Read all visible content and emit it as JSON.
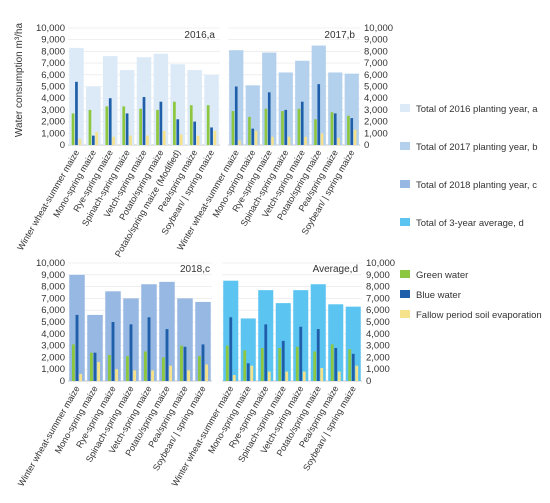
{
  "figure": {
    "ylabel": "Water consumption  m³/ha"
  },
  "y_ticks": [
    "0",
    "1,000",
    "2,000",
    "3,000",
    "4,000",
    "5,000",
    "6,000",
    "7,000",
    "8,000",
    "9,000",
    "10,000"
  ],
  "colors": {
    "total_2016": "#dbeaf6",
    "total_2017": "#b3d0ec",
    "total_2018": "#96b8e2",
    "total_avg": "#5bc4f1",
    "green_water": "#8dc63f",
    "blue_water": "#1f5fa9",
    "fallow_evap": "#f6e28b"
  },
  "legend_top": [
    {
      "key": "total_2016",
      "label": "Total of 2016 planting year, a"
    },
    {
      "key": "total_2017",
      "label": "Total of 2017 planting year, b"
    },
    {
      "key": "total_2018",
      "label": "Total of 2018 planting year, c"
    },
    {
      "key": "total_avg",
      "label": "Total of 3-year average, d"
    }
  ],
  "legend_bottom": [
    {
      "key": "green_water",
      "label": "Green water"
    },
    {
      "key": "blue_water",
      "label": "Blue water"
    },
    {
      "key": "fallow_evap",
      "label": "Fallow period soil evaporation"
    }
  ],
  "chart_data": [
    {
      "type": "bar",
      "title": "2016,a",
      "ylim": [
        0,
        10000
      ],
      "total_key": "total_2016",
      "categories": [
        "Winter wheat-summer maize",
        "Mono-spring maize",
        "Rye-spring maize",
        "Spinach-spring maize",
        "Vetch-spring maize",
        "Potato/spring maize",
        "Potato/spring maize (Modified)",
        "Pea/spring maize",
        "Soybean/ | spring maize"
      ],
      "series": [
        {
          "name": "Total of 2016 planting year, a",
          "values": [
            8300,
            5000,
            7600,
            6400,
            7500,
            7800,
            6900,
            6400,
            6000
          ]
        },
        {
          "name": "Green water",
          "values": [
            2700,
            3000,
            3300,
            3300,
            3100,
            3000,
            3700,
            3400,
            3400
          ]
        },
        {
          "name": "Blue water",
          "values": [
            5400,
            800,
            4000,
            2700,
            4100,
            3700,
            2200,
            2000,
            1500
          ]
        },
        {
          "name": "Fallow period soil evaporation",
          "values": [
            500,
            1100,
            700,
            800,
            800,
            1200,
            900,
            800,
            1200
          ]
        }
      ]
    },
    {
      "type": "bar",
      "title": "2017,b",
      "ylim": [
        0,
        10000
      ],
      "total_key": "total_2017",
      "categories": [
        "Winter wheat-summer maize",
        "Mono-spring maize",
        "Rye-spring maize",
        "Spinach-spring maize",
        "Vetch-spring maize",
        "Potato/spring maize",
        "Pea/spring maize",
        "Soybean/ | spring maize"
      ],
      "series": [
        {
          "name": "Total of 2017 planting year, b",
          "values": [
            8100,
            5100,
            7900,
            6200,
            7200,
            8500,
            6200,
            6100
          ]
        },
        {
          "name": "Green water",
          "values": [
            2900,
            2400,
            3100,
            2900,
            3100,
            2200,
            2800,
            2500
          ]
        },
        {
          "name": "Blue water",
          "values": [
            5000,
            1400,
            4500,
            3000,
            3700,
            5200,
            2700,
            2300
          ]
        },
        {
          "name": "Fallow period soil evaporation",
          "values": [
            400,
            1200,
            700,
            700,
            700,
            1000,
            600,
            1300
          ]
        }
      ]
    },
    {
      "type": "bar",
      "title": "2018,c",
      "ylim": [
        0,
        10000
      ],
      "total_key": "total_2018",
      "categories": [
        "Winter wheat-summer maize",
        "Mono-spring maize",
        "Rye-spring maize",
        "Spinach-spring maize",
        "Vetch-spring maize",
        "Potato/spring maize",
        "Pea/spring maize",
        "Soybean/ | spring maize"
      ],
      "series": [
        {
          "name": "Total of 2018 planting year, c",
          "values": [
            9000,
            5600,
            7600,
            7000,
            8200,
            8400,
            7000,
            6700
          ]
        },
        {
          "name": "Green water",
          "values": [
            3100,
            2400,
            2200,
            2100,
            2500,
            2000,
            3000,
            2100
          ]
        },
        {
          "name": "Blue water",
          "values": [
            5600,
            2400,
            5000,
            4800,
            5400,
            4400,
            2900,
            3100
          ]
        },
        {
          "name": "Fallow period soil evaporation",
          "values": [
            600,
            1600,
            1000,
            900,
            900,
            1300,
            900,
            1400
          ]
        }
      ]
    },
    {
      "type": "bar",
      "title": "Average,d",
      "ylim": [
        0,
        10000
      ],
      "total_key": "total_avg",
      "categories": [
        "Winter wheat-summer maize",
        "Mono-spring maize",
        "Rye-spring maize",
        "Spinach-spring maize",
        "Vetch-spring maize",
        "Potato/spring maize",
        "Pea/spring maize",
        "Soybean/ | spring maize"
      ],
      "series": [
        {
          "name": "Total of 3-year average, d",
          "values": [
            8500,
            5300,
            7700,
            6600,
            7700,
            8200,
            6500,
            6300
          ]
        },
        {
          "name": "Green water",
          "values": [
            3000,
            2600,
            2800,
            2800,
            2900,
            2500,
            3100,
            2700
          ]
        },
        {
          "name": "Blue water",
          "values": [
            5400,
            1500,
            4800,
            3400,
            4600,
            4400,
            2800,
            2300
          ]
        },
        {
          "name": "Fallow period soil evaporation",
          "values": [
            500,
            1300,
            800,
            800,
            800,
            1100,
            800,
            1300
          ]
        }
      ]
    }
  ]
}
